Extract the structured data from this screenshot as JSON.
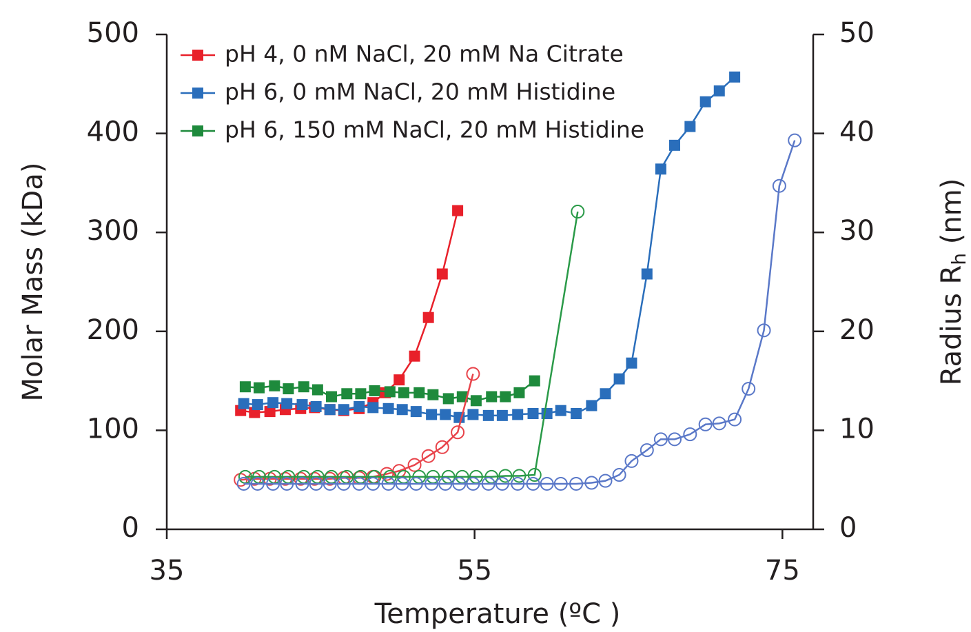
{
  "chart_data": {
    "type": "line",
    "xlabel": "Temperature (ºC )",
    "ylabel": "Molar Mass (kDa)",
    "y2label": [
      "Radius R",
      "h",
      " (nm)"
    ],
    "xlim": [
      35,
      77
    ],
    "xticks": [
      35,
      55,
      75
    ],
    "ylim": [
      0,
      500
    ],
    "yticks": [
      0,
      100,
      200,
      300,
      400,
      500
    ],
    "y2lim": [
      0,
      50
    ],
    "y2ticks": [
      0,
      10,
      20,
      30,
      40,
      50
    ],
    "legend": "upper left",
    "series": [
      {
        "name": "pH 4, 0 nM NaCl, 20 mM Na Citrate",
        "color": "#e8202a",
        "marker": "square",
        "x": [
          39.8,
          40.7,
          41.7,
          42.7,
          43.7,
          44.6,
          45.6,
          46.5,
          47.5,
          48.4,
          49.2,
          50.1,
          51.1,
          52.0,
          52.9,
          53.9
        ],
        "values": [
          120,
          118,
          119,
          121,
          122,
          123,
          121,
          120,
          122,
          128,
          138,
          151,
          175,
          214,
          258,
          322
        ]
      },
      {
        "name": "pH 6, 0 mM NaCl, 20 mM Histidine",
        "color": "#2a6ebb",
        "marker": "square",
        "x": [
          40.0,
          40.9,
          41.9,
          42.8,
          43.8,
          44.7,
          45.6,
          46.5,
          47.5,
          48.4,
          49.4,
          50.3,
          51.2,
          52.2,
          53.1,
          54.0,
          54.9,
          55.9,
          56.8,
          57.8,
          58.8,
          59.7,
          60.6,
          61.6,
          62.6,
          63.5,
          64.4,
          65.2,
          66.2,
          67.1,
          68.0,
          69.0,
          70.0,
          70.9,
          71.9
        ],
        "values": [
          127,
          126,
          128,
          127,
          126,
          124,
          121,
          121,
          124,
          123,
          122,
          121,
          119,
          116,
          116,
          113,
          116,
          115,
          115,
          116,
          117,
          117,
          120,
          117,
          125,
          137,
          152,
          168,
          258,
          364,
          388,
          407,
          432,
          443,
          457
        ]
      },
      {
        "name": "pH 6, 150 mM NaCl, 20 mM Histidine",
        "color": "#1e8a3c",
        "marker": "square",
        "x": [
          40.1,
          41.0,
          42.0,
          42.9,
          43.9,
          44.8,
          45.7,
          46.7,
          47.6,
          48.5,
          49.5,
          50.4,
          51.4,
          52.3,
          53.3,
          54.2,
          55.1,
          56.1,
          57.0,
          57.9,
          58.9
        ],
        "values": [
          144,
          143,
          145,
          142,
          144,
          141,
          134,
          137,
          137,
          140,
          139,
          138,
          138,
          136,
          132,
          134,
          130,
          134,
          134,
          138,
          150
        ]
      },
      {
        "color": "#e8434a",
        "marker": "circle",
        "axis": "y2",
        "x": [
          39.8,
          40.7,
          41.7,
          42.7,
          43.7,
          44.6,
          45.6,
          46.5,
          47.5,
          48.4,
          49.3,
          50.1,
          51.1,
          52.0,
          52.9,
          53.9,
          54.9
        ],
        "values": [
          5.0,
          5.1,
          5.1,
          5.1,
          5.1,
          5.1,
          5.1,
          5.2,
          5.2,
          5.3,
          5.6,
          5.9,
          6.5,
          7.4,
          8.3,
          9.8,
          15.7
        ]
      },
      {
        "color": "#2a9a48",
        "marker": "circle",
        "axis": "y2",
        "x": [
          40.1,
          41.0,
          42.0,
          42.9,
          43.9,
          44.8,
          45.7,
          46.7,
          47.6,
          48.5,
          49.5,
          50.4,
          51.4,
          52.3,
          53.3,
          54.2,
          55.1,
          56.1,
          57.0,
          57.9,
          58.9,
          61.7
        ],
        "values": [
          5.3,
          5.3,
          5.3,
          5.3,
          5.3,
          5.3,
          5.3,
          5.3,
          5.3,
          5.3,
          5.3,
          5.3,
          5.3,
          5.3,
          5.3,
          5.3,
          5.3,
          5.3,
          5.4,
          5.4,
          5.5,
          32.1
        ]
      },
      {
        "color": "#5a78c8",
        "marker": "circle",
        "axis": "y2",
        "x": [
          40.0,
          40.9,
          41.9,
          42.8,
          43.8,
          44.7,
          45.6,
          46.5,
          47.5,
          48.4,
          49.4,
          50.3,
          51.2,
          52.2,
          53.1,
          54.0,
          54.9,
          55.9,
          56.8,
          57.8,
          58.8,
          59.7,
          60.6,
          61.6,
          62.6,
          63.5,
          64.4,
          65.2,
          66.2,
          67.1,
          68.0,
          69.0,
          70.0,
          70.9,
          71.9,
          72.8,
          73.8,
          74.8,
          75.8
        ],
        "values": [
          4.6,
          4.6,
          4.6,
          4.6,
          4.6,
          4.6,
          4.6,
          4.6,
          4.6,
          4.6,
          4.6,
          4.6,
          4.6,
          4.6,
          4.6,
          4.6,
          4.6,
          4.6,
          4.6,
          4.6,
          4.6,
          4.6,
          4.6,
          4.6,
          4.7,
          4.9,
          5.5,
          6.9,
          8.0,
          9.1,
          9.1,
          9.6,
          10.6,
          10.7,
          11.1,
          14.2,
          20.1,
          34.7,
          39.3
        ]
      }
    ]
  }
}
